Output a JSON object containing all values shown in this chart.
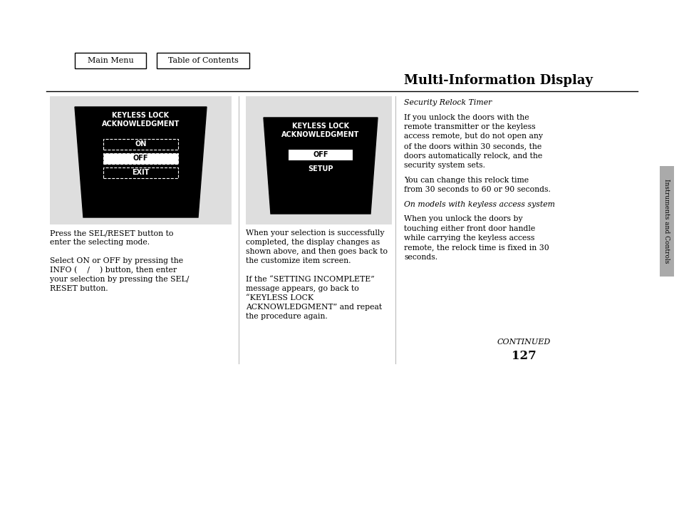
{
  "page_bg": "#ffffff",
  "title": "Multi-Information Display",
  "title_fontsize": 13,
  "page_number": "127",
  "nav_buttons": [
    "Main Menu",
    "Table of Contents"
  ],
  "section_label": "Instruments and Controls",
  "continued_text": "CONTINUED",
  "left_panel_text_below": [
    "Press the SEL/RESET button to",
    "enter the selecting mode.",
    "",
    "Select ON or OFF by pressing the",
    "INFO (    /    ) button, then enter",
    "your selection by pressing the SEL/",
    "RESET button."
  ],
  "right_panel_text_below": [
    "When your selection is successfully",
    "completed, the display changes as",
    "shown above, and then goes back to",
    "the customize item screen.",
    "",
    "If the “SETTING INCOMPLETE”",
    "message appears, go back to",
    "“KEYLESS LOCK",
    "ACKNOWLEDGMENT” and repeat",
    "the procedure again."
  ],
  "right_text_paragraphs": [
    {
      "italic": true,
      "text": "Security Relock Timer"
    },
    {
      "italic": false,
      "text": "If you unlock the doors with the\nremote transmitter or the keyless\naccess remote, but do not open any\nof the doors within 30 seconds, the\ndoors automatically relock, and the\nsecurity system sets."
    },
    {
      "italic": false,
      "text": "You can change this relock time\nfrom 30 seconds to 60 or 90 seconds."
    },
    {
      "italic": true,
      "text": "On models with keyless access system"
    },
    {
      "italic": false,
      "text": "When you unlock the doors by\ntouching either front door handle\nwhile carrying the keyless access\nremote, the relock time is fixed in 30\nseconds."
    }
  ]
}
